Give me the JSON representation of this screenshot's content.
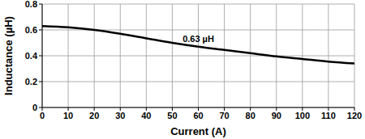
{
  "chart_data": {
    "type": "line",
    "x_label": "Current (A)",
    "y_label": "Inductance (µH)",
    "x": [
      0,
      10,
      20,
      30,
      40,
      50,
      60,
      70,
      80,
      90,
      100,
      110,
      120
    ],
    "values": [
      0.63,
      0.62,
      0.6,
      0.57,
      0.535,
      0.5,
      0.47,
      0.445,
      0.42,
      0.395,
      0.375,
      0.355,
      0.34
    ],
    "color": "#000000",
    "xlim": [
      0,
      120
    ],
    "xticks": [
      0,
      10,
      20,
      30,
      40,
      50,
      60,
      70,
      80,
      90,
      100,
      110,
      120
    ],
    "ylim": [
      0,
      0.8
    ],
    "yticks": [
      0,
      0.2,
      0.4,
      0.6,
      0.8
    ],
    "grid": true,
    "annotations": [
      {
        "text": "0.63 µH",
        "x": 60,
        "y": 0.53
      }
    ]
  }
}
